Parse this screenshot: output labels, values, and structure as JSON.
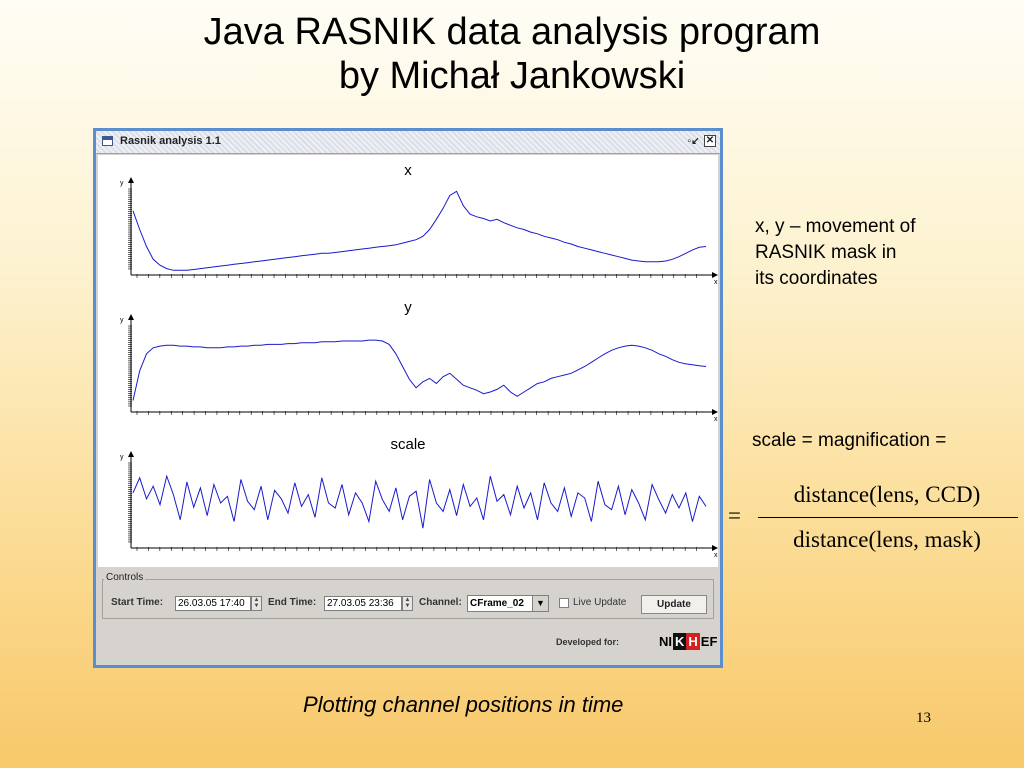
{
  "slide": {
    "title_line1": "Java RASNIK data analysis program",
    "title_line2": "by Michał Jankowski",
    "note_line1": "x, y – movement of",
    "note_line2": "RASNIK mask in",
    "note_line3": "its coordinates",
    "scale_note": "scale = magnification =",
    "formula": {
      "equals": "=",
      "numerator": "distance(lens, CCD)",
      "denominator": "distance(lens, mask)"
    },
    "caption": "Plotting channel positions in time",
    "page_number": "13"
  },
  "window": {
    "title": "Rasnik analysis 1.1",
    "restore_glyph": "▫↙",
    "close_glyph": "✕"
  },
  "chart_data": [
    {
      "type": "line",
      "title": "x",
      "xlabel": "x",
      "ylabel": "y",
      "series_color": "#1a1acc",
      "values": [
        0.72,
        0.5,
        0.3,
        0.15,
        0.08,
        0.04,
        0.02,
        0.02,
        0.02,
        0.03,
        0.04,
        0.05,
        0.06,
        0.07,
        0.08,
        0.09,
        0.1,
        0.11,
        0.12,
        0.13,
        0.14,
        0.15,
        0.16,
        0.17,
        0.18,
        0.19,
        0.2,
        0.21,
        0.22,
        0.22,
        0.23,
        0.24,
        0.25,
        0.26,
        0.27,
        0.28,
        0.29,
        0.3,
        0.31,
        0.32,
        0.34,
        0.36,
        0.38,
        0.42,
        0.5,
        0.62,
        0.75,
        0.9,
        0.95,
        0.78,
        0.68,
        0.65,
        0.63,
        0.6,
        0.62,
        0.58,
        0.55,
        0.52,
        0.5,
        0.47,
        0.45,
        0.42,
        0.4,
        0.38,
        0.35,
        0.33,
        0.3,
        0.28,
        0.26,
        0.24,
        0.22,
        0.2,
        0.18,
        0.16,
        0.14,
        0.13,
        0.12,
        0.12,
        0.12,
        0.13,
        0.15,
        0.18,
        0.22,
        0.26,
        0.29,
        0.3
      ]
    },
    {
      "type": "line",
      "title": "y",
      "xlabel": "x",
      "ylabel": "y",
      "series_color": "#1a1acc",
      "values": [
        0.1,
        0.45,
        0.65,
        0.72,
        0.74,
        0.75,
        0.75,
        0.74,
        0.74,
        0.73,
        0.73,
        0.72,
        0.72,
        0.72,
        0.73,
        0.73,
        0.74,
        0.74,
        0.75,
        0.75,
        0.76,
        0.76,
        0.76,
        0.77,
        0.77,
        0.78,
        0.78,
        0.78,
        0.79,
        0.79,
        0.79,
        0.8,
        0.8,
        0.8,
        0.8,
        0.81,
        0.81,
        0.8,
        0.76,
        0.65,
        0.5,
        0.35,
        0.25,
        0.32,
        0.36,
        0.3,
        0.38,
        0.42,
        0.35,
        0.28,
        0.25,
        0.22,
        0.18,
        0.2,
        0.23,
        0.28,
        0.2,
        0.15,
        0.2,
        0.25,
        0.3,
        0.32,
        0.36,
        0.38,
        0.4,
        0.42,
        0.46,
        0.5,
        0.55,
        0.6,
        0.65,
        0.69,
        0.72,
        0.74,
        0.75,
        0.74,
        0.72,
        0.69,
        0.65,
        0.62,
        0.58,
        0.55,
        0.53,
        0.52,
        0.51,
        0.5
      ]
    },
    {
      "type": "line",
      "title": "scale",
      "xlabel": "x",
      "ylabel": "y",
      "series_color": "#1a1acc",
      "values": [
        0.62,
        0.8,
        0.55,
        0.7,
        0.48,
        0.82,
        0.6,
        0.3,
        0.75,
        0.45,
        0.68,
        0.35,
        0.72,
        0.5,
        0.58,
        0.28,
        0.78,
        0.52,
        0.42,
        0.7,
        0.3,
        0.65,
        0.55,
        0.38,
        0.74,
        0.46,
        0.6,
        0.33,
        0.8,
        0.5,
        0.44,
        0.72,
        0.36,
        0.62,
        0.5,
        0.28,
        0.76,
        0.54,
        0.4,
        0.68,
        0.3,
        0.58,
        0.64,
        0.2,
        0.78,
        0.5,
        0.4,
        0.66,
        0.35,
        0.72,
        0.46,
        0.56,
        0.3,
        0.82,
        0.52,
        0.6,
        0.36,
        0.7,
        0.44,
        0.62,
        0.3,
        0.74,
        0.5,
        0.4,
        0.68,
        0.34,
        0.62,
        0.56,
        0.28,
        0.76,
        0.48,
        0.42,
        0.7,
        0.36,
        0.66,
        0.5,
        0.3,
        0.72,
        0.54,
        0.38,
        0.6,
        0.44,
        0.62,
        0.28,
        0.58,
        0.46
      ]
    }
  ],
  "controls": {
    "group_label": "Controls",
    "start_label": "Start Time:",
    "start_value": "26.03.05 17:40",
    "end_label": "End Time:",
    "end_value": "27.03.05 23:36",
    "channel_label": "Channel:",
    "channel_value": "CFrame_02",
    "dropdown_glyph": "▼",
    "live_update_label": "Live Update",
    "update_button": "Update",
    "developed_for": "Developed for:",
    "logo_text_a": "NI",
    "logo_text_k": "K",
    "logo_text_h": "H",
    "logo_text_b": "EF"
  }
}
